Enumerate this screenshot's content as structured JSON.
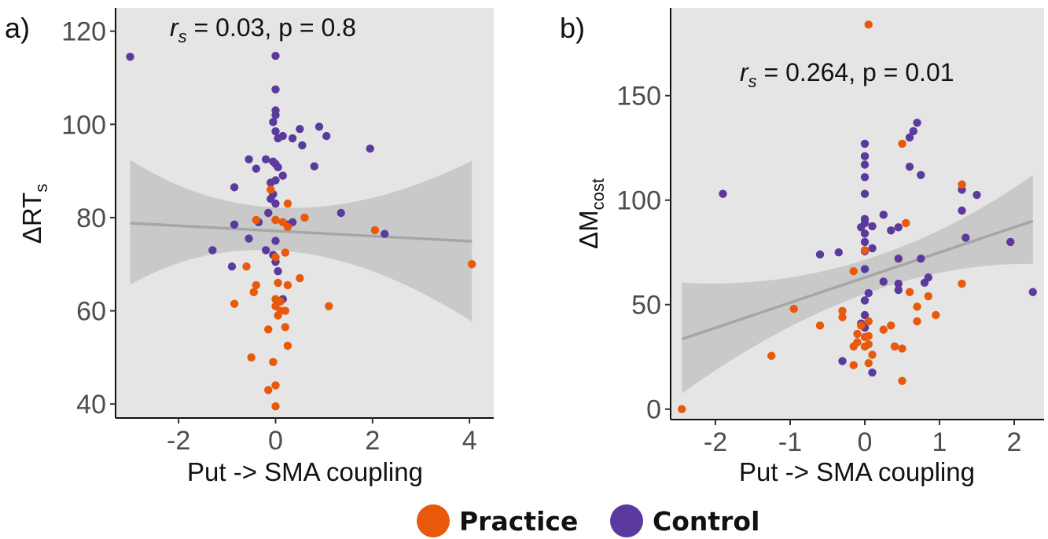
{
  "colors": {
    "practice": "#e8590c",
    "control": "#5b3a9e",
    "panel_bg": "#e5e5e5",
    "ci_band": "#c4c4c4",
    "fit_line": "#a6a6a6"
  },
  "legend": {
    "practice_label": "Practice",
    "control_label": "Control"
  },
  "chart_data": [
    {
      "type": "scatter",
      "panel_label": "a)",
      "annotation": {
        "r": "r",
        "s": "s",
        "rest": " = 0.03, p = 0.8"
      },
      "xlabel": "Put -> SMA coupling",
      "ylabel": {
        "main": "ΔRT",
        "sub": "s"
      },
      "xlim": [
        -3.3,
        4.5
      ],
      "ylim": [
        37,
        125
      ],
      "xticks": [
        -2,
        0,
        2,
        4
      ],
      "yticks": [
        40,
        60,
        80,
        100,
        120
      ],
      "grid": false,
      "fit": {
        "x": [
          -3.0,
          4.05
        ],
        "y": [
          78.8,
          74.9
        ],
        "ci_at_x_min": [
          65.6,
          92.4
        ],
        "ci_at_x_max": [
          57.7,
          92.2
        ],
        "ci_narrowest_x": 0.1,
        "ci_narrowest": [
          75.5,
          79.5
        ]
      },
      "series": [
        {
          "name": "Control",
          "color_key": "control",
          "points": [
            [
              -3.0,
              114.5
            ],
            [
              0.0,
              114.7
            ],
            [
              0.0,
              107.5
            ],
            [
              0.0,
              103
            ],
            [
              0.0,
              102
            ],
            [
              -0.05,
              100.5
            ],
            [
              0.0,
              98.5
            ],
            [
              0.05,
              97
            ],
            [
              0.15,
              97.5
            ],
            [
              0.35,
              97
            ],
            [
              0.5,
              99
            ],
            [
              0.55,
              95.5
            ],
            [
              0.9,
              99.5
            ],
            [
              1.05,
              97.5
            ],
            [
              1.95,
              94.8
            ],
            [
              -0.55,
              92.5
            ],
            [
              -0.4,
              90.5
            ],
            [
              -0.2,
              92.5
            ],
            [
              -0.05,
              92
            ],
            [
              0.0,
              91.5
            ],
            [
              0.05,
              90.8
            ],
            [
              0.0,
              88
            ],
            [
              -0.1,
              87.5
            ],
            [
              0.15,
              89
            ],
            [
              0.8,
              91
            ],
            [
              -0.85,
              86.5
            ],
            [
              -0.05,
              85
            ],
            [
              -0.1,
              84
            ],
            [
              0.0,
              83
            ],
            [
              -0.15,
              81
            ],
            [
              0.0,
              79.5
            ],
            [
              0.25,
              78.5
            ],
            [
              0.35,
              79
            ],
            [
              -0.85,
              78.5
            ],
            [
              -0.35,
              79
            ],
            [
              1.35,
              81
            ],
            [
              2.25,
              76.5
            ],
            [
              -1.3,
              73
            ],
            [
              -0.55,
              75.5
            ],
            [
              -0.2,
              73
            ],
            [
              0.0,
              75
            ],
            [
              -0.05,
              72
            ],
            [
              -0.9,
              69.5
            ],
            [
              0.0,
              70.5
            ],
            [
              0.05,
              68.5
            ],
            [
              0.15,
              62.5
            ]
          ]
        },
        {
          "name": "Practice",
          "color_key": "practice",
          "points": [
            [
              -0.1,
              86
            ],
            [
              0.25,
              83
            ],
            [
              -0.4,
              79.5
            ],
            [
              0.0,
              79.5
            ],
            [
              0.15,
              79
            ],
            [
              0.25,
              78
            ],
            [
              0.6,
              80
            ],
            [
              2.05,
              77.3
            ],
            [
              4.05,
              70
            ],
            [
              -0.6,
              69.5
            ],
            [
              0.0,
              71.5
            ],
            [
              0.2,
              72.5
            ],
            [
              0.05,
              66
            ],
            [
              0.25,
              65.5
            ],
            [
              0.5,
              67
            ],
            [
              -0.4,
              65.5
            ],
            [
              -0.45,
              64
            ],
            [
              0.0,
              62.5
            ],
            [
              0.1,
              62
            ],
            [
              0.0,
              61
            ],
            [
              0.1,
              60
            ],
            [
              0.2,
              60
            ],
            [
              -0.85,
              61.5
            ],
            [
              1.1,
              61
            ],
            [
              0.05,
              59
            ],
            [
              -0.15,
              56
            ],
            [
              0.2,
              56.5
            ],
            [
              0.25,
              52.5
            ],
            [
              -0.5,
              50
            ],
            [
              -0.05,
              49
            ],
            [
              -0.15,
              43
            ],
            [
              0.0,
              44
            ],
            [
              0.0,
              39.5
            ]
          ]
        }
      ]
    },
    {
      "type": "scatter",
      "panel_label": "b)",
      "annotation": {
        "r": "r",
        "s": "s",
        "rest": " = 0.264, p = 0.01"
      },
      "xlabel": "Put -> SMA coupling",
      "ylabel": {
        "main": "ΔM",
        "sub": "cost"
      },
      "xlim": [
        -2.6,
        2.4
      ],
      "ylim": [
        -5,
        192
      ],
      "xticks": [
        -2,
        -1,
        0,
        1,
        2
      ],
      "yticks": [
        0,
        50,
        100,
        150
      ],
      "grid": false,
      "fit": {
        "x": [
          -2.45,
          2.25
        ],
        "y": [
          33.5,
          90
        ],
        "ci_at_x_min": [
          7.5,
          60.5
        ],
        "ci_at_x_max": [
          69.5,
          112
        ],
        "ci_narrowest_x": 0.0,
        "ci_narrowest": [
          58.5,
          67
        ]
      },
      "series": [
        {
          "name": "Control",
          "color_key": "control",
          "points": [
            [
              0.0,
              127
            ],
            [
              0.65,
              133
            ],
            [
              0.7,
              137
            ],
            [
              0.6,
              130
            ],
            [
              0.0,
              121
            ],
            [
              0.0,
              117
            ],
            [
              0.6,
              116
            ],
            [
              0.75,
              112
            ],
            [
              0.0,
              111
            ],
            [
              -1.9,
              103
            ],
            [
              0.0,
              103
            ],
            [
              1.3,
              105
            ],
            [
              1.5,
              102.5
            ],
            [
              1.3,
              95
            ],
            [
              0.0,
              91
            ],
            [
              0.25,
              93
            ],
            [
              0.0,
              89
            ],
            [
              -0.05,
              87
            ],
            [
              0.1,
              87.5
            ],
            [
              0.35,
              85.5
            ],
            [
              0.45,
              87
            ],
            [
              0.0,
              84
            ],
            [
              0.0,
              80
            ],
            [
              1.35,
              82
            ],
            [
              1.95,
              80
            ],
            [
              -0.6,
              74
            ],
            [
              -0.35,
              75
            ],
            [
              0.0,
              75.5
            ],
            [
              0.1,
              77
            ],
            [
              0.45,
              72
            ],
            [
              0.75,
              72
            ],
            [
              0.0,
              67
            ],
            [
              0.25,
              61
            ],
            [
              0.45,
              60
            ],
            [
              0.8,
              60.5
            ],
            [
              0.85,
              63
            ],
            [
              0.05,
              55.5
            ],
            [
              0.45,
              57
            ],
            [
              0.0,
              52
            ],
            [
              2.25,
              56
            ],
            [
              0.0,
              45
            ],
            [
              -0.05,
              41
            ],
            [
              0.0,
              39
            ],
            [
              -0.3,
              23
            ],
            [
              0.1,
              17.5
            ]
          ]
        },
        {
          "name": "Practice",
          "color_key": "practice",
          "points": [
            [
              0.05,
              184
            ],
            [
              0.5,
              127
            ],
            [
              1.3,
              107.5
            ],
            [
              0.55,
              89
            ],
            [
              0.0,
              76
            ],
            [
              -0.15,
              66
            ],
            [
              1.3,
              60
            ],
            [
              0.6,
              56
            ],
            [
              0.85,
              54
            ],
            [
              0.7,
              49
            ],
            [
              -0.95,
              48
            ],
            [
              -0.3,
              47
            ],
            [
              -0.3,
              44
            ],
            [
              0.7,
              42
            ],
            [
              0.95,
              45
            ],
            [
              -0.6,
              40
            ],
            [
              -0.05,
              40
            ],
            [
              0.05,
              42
            ],
            [
              0.35,
              40
            ],
            [
              0.25,
              38
            ],
            [
              -0.1,
              36
            ],
            [
              0.0,
              34.5
            ],
            [
              0.05,
              35
            ],
            [
              -0.1,
              32
            ],
            [
              0.0,
              30
            ],
            [
              0.05,
              31
            ],
            [
              0.4,
              30
            ],
            [
              0.5,
              29
            ],
            [
              -0.15,
              30
            ],
            [
              0.1,
              26
            ],
            [
              -1.25,
              25.5
            ],
            [
              -0.15,
              21
            ],
            [
              0.05,
              22
            ],
            [
              0.5,
              13.5
            ],
            [
              -2.45,
              0
            ]
          ]
        }
      ]
    }
  ]
}
